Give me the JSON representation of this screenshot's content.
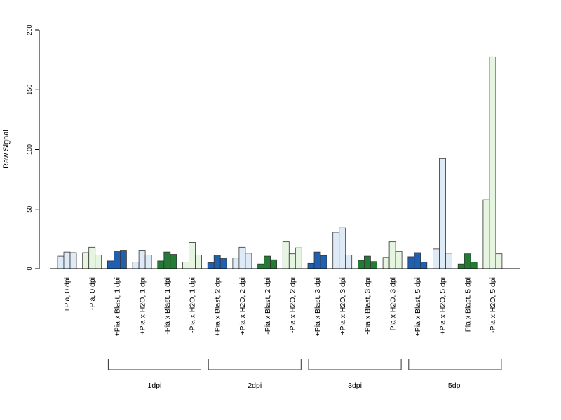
{
  "chart_data": {
    "type": "bar",
    "ylabel": "Raw Signal",
    "xlabel": "",
    "title": "",
    "ylim": [
      0,
      200
    ],
    "yticks": [
      0,
      50,
      100,
      150,
      200
    ],
    "grid": false,
    "legend": "none",
    "categories": [
      "+Pia, 0 dpi",
      "-Pia, 0 dpi",
      "+Pia x Blast, 1 dpi",
      "+Pia x H2O, 1 dpi",
      "-Pia x Blast, 1 dpi",
      "-Pia x H2O, 1 dpi",
      "+Pia x Blast, 2 dpi",
      "+Pia x H2O, 2 dpi",
      "-Pia x Blast, 2 dpi",
      "-Pia x H2O, 2 dpi",
      "+Pia x Blast, 3 dpi",
      "+Pia x H2O, 3 dpi",
      "-Pia x Blast, 3 dpi",
      "-Pia x H2O, 3 dpi",
      "+Pia x Blast, 5 dpi",
      "+Pia x H2O, 5 dpi",
      "-Pia x Blast, 5 dpi",
      "-Pia x H2O, 5 dpi"
    ],
    "category_colors": [
      "#deebf7",
      "#e5f5e0",
      "#2060b0",
      "#deebf7",
      "#237b35",
      "#e5f5e0",
      "#2060b0",
      "#deebf7",
      "#237b35",
      "#e5f5e0",
      "#2060b0",
      "#deebf7",
      "#237b35",
      "#e5f5e0",
      "#2060b0",
      "#deebf7",
      "#237b35",
      "#e5f5e0"
    ],
    "values": [
      [
        10.5,
        14,
        13.5
      ],
      [
        13.5,
        18,
        11.5
      ],
      [
        6.5,
        15,
        15.5
      ],
      [
        5.5,
        15.5,
        11.5
      ],
      [
        6.5,
        14,
        12
      ],
      [
        5.5,
        22,
        11.5
      ],
      [
        5,
        11.5,
        8.5
      ],
      [
        9,
        18,
        13
      ],
      [
        4,
        10.5,
        7.5
      ],
      [
        22.5,
        12.5,
        17.5
      ],
      [
        4.5,
        14,
        11
      ],
      [
        30.5,
        34.5,
        11.5
      ],
      [
        7,
        10.5,
        6
      ],
      [
        9.5,
        22.5,
        14.5
      ],
      [
        10,
        13.5,
        5.5
      ],
      [
        16.5,
        92.5,
        13
      ],
      [
        4,
        12.5,
        5.5
      ],
      [
        58,
        177.5,
        12.5
      ]
    ],
    "groups": [
      {
        "label": "1dpi",
        "start": 2,
        "end": 5
      },
      {
        "label": "2dpi",
        "start": 6,
        "end": 9
      },
      {
        "label": "3dpi",
        "start": 10,
        "end": 13
      },
      {
        "label": "5dpi",
        "start": 14,
        "end": 17
      }
    ]
  }
}
